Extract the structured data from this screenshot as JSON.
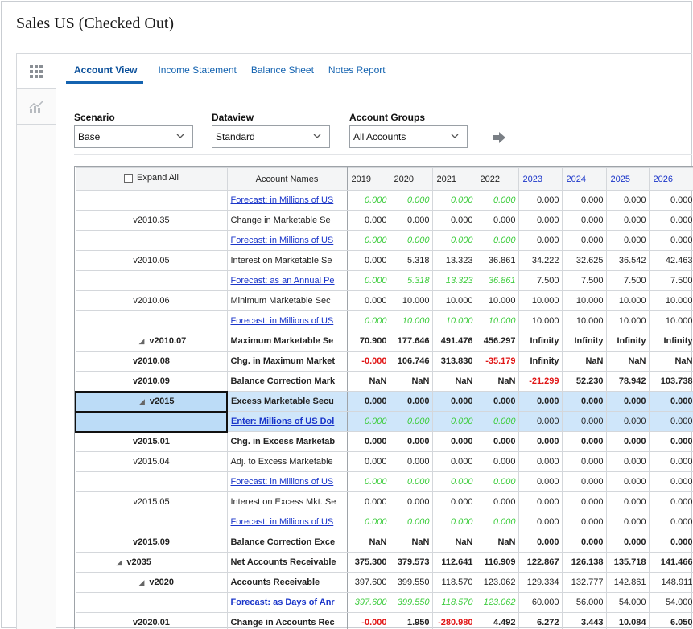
{
  "page_title": "Sales US (Checked Out)",
  "tabs": [
    {
      "label": "Account View",
      "active": true
    },
    {
      "label": "Income Statement",
      "active": false
    },
    {
      "label": "Balance Sheet",
      "active": false
    },
    {
      "label": "Notes Report",
      "active": false
    }
  ],
  "filters": {
    "scenario": {
      "label": "Scenario",
      "value": "Base"
    },
    "dataview": {
      "label": "Dataview",
      "value": "Standard"
    },
    "account_groups": {
      "label": "Account Groups",
      "value": "All Accounts"
    }
  },
  "grid": {
    "expand_all_label": "Expand All",
    "account_names_header": "Account Names",
    "years": [
      "2019",
      "2020",
      "2021",
      "2022",
      "2023",
      "2024",
      "2025",
      "2026"
    ],
    "future_years": [
      "2023",
      "2024",
      "2025",
      "2026"
    ],
    "rows": [
      {
        "code": "",
        "name": "Forecast: in Millions of US",
        "link": true,
        "bold": false,
        "values": [
          "0.000",
          "0.000",
          "0.000",
          "0.000",
          "0.000",
          "0.000",
          "0.000",
          "0.000"
        ],
        "green_count": 4
      },
      {
        "code": "v2010.35",
        "name": "Change in Marketable Se",
        "values": [
          "0.000",
          "0.000",
          "0.000",
          "0.000",
          "0.000",
          "0.000",
          "0.000",
          "0.000"
        ]
      },
      {
        "code": "",
        "name": "Forecast: in Millions of US",
        "link": true,
        "values": [
          "0.000",
          "0.000",
          "0.000",
          "0.000",
          "0.000",
          "0.000",
          "0.000",
          "0.000"
        ],
        "green_count": 4
      },
      {
        "code": "v2010.05",
        "name": "Interest on Marketable Se",
        "values": [
          "0.000",
          "5.318",
          "13.323",
          "36.861",
          "34.222",
          "32.625",
          "36.542",
          "42.463"
        ]
      },
      {
        "code": "",
        "name": "Forecast: as an Annual Pe",
        "link": true,
        "values": [
          "0.000",
          "5.318",
          "13.323",
          "36.861",
          "7.500",
          "7.500",
          "7.500",
          "7.500"
        ],
        "green_count": 4
      },
      {
        "code": "v2010.06",
        "name": "Minimum Marketable Sec",
        "values": [
          "0.000",
          "10.000",
          "10.000",
          "10.000",
          "10.000",
          "10.000",
          "10.000",
          "10.000"
        ]
      },
      {
        "code": "",
        "name": "Forecast: in Millions of US",
        "link": true,
        "values": [
          "0.000",
          "10.000",
          "10.000",
          "10.000",
          "10.000",
          "10.000",
          "10.000",
          "10.000"
        ],
        "green_count": 4
      },
      {
        "code": "v2010.07",
        "name": "Maximum Marketable Se",
        "bold": true,
        "expander": true,
        "values": [
          "70.900",
          "177.646",
          "491.476",
          "456.297",
          "Infinity",
          "Infinity",
          "Infinity",
          "Infinity"
        ]
      },
      {
        "code": "v2010.08",
        "name": "Chg. in Maximum Market",
        "bold": true,
        "values": [
          "-0.000",
          "106.746",
          "313.830",
          "-35.179",
          "Infinity",
          "NaN",
          "NaN",
          "NaN"
        ],
        "red": [
          0,
          3
        ]
      },
      {
        "code": "v2010.09",
        "name": "Balance Correction Mark",
        "bold": true,
        "values": [
          "NaN",
          "NaN",
          "NaN",
          "NaN",
          "-21.299",
          "52.230",
          "78.942",
          "103.738"
        ],
        "red": [
          4
        ]
      },
      {
        "code": "v2015",
        "name": "Excess Marketable Secu",
        "bold": true,
        "expander": true,
        "selected": true,
        "values": [
          "0.000",
          "0.000",
          "0.000",
          "0.000",
          "0.000",
          "0.000",
          "0.000",
          "0.000"
        ]
      },
      {
        "code": "",
        "name": "Enter: Millions of US Dol",
        "link": true,
        "bold": true,
        "selected": true,
        "values": [
          "0.000",
          "0.000",
          "0.000",
          "0.000",
          "0.000",
          "0.000",
          "0.000",
          "0.000"
        ],
        "green_count": 4
      },
      {
        "code": "v2015.01",
        "name": "Chg. in Excess Marketab",
        "bold": true,
        "values": [
          "0.000",
          "0.000",
          "0.000",
          "0.000",
          "0.000",
          "0.000",
          "0.000",
          "0.000"
        ]
      },
      {
        "code": "v2015.04",
        "name": "Adj. to Excess Marketable",
        "values": [
          "0.000",
          "0.000",
          "0.000",
          "0.000",
          "0.000",
          "0.000",
          "0.000",
          "0.000"
        ]
      },
      {
        "code": "",
        "name": "Forecast: in Millions of US",
        "link": true,
        "values": [
          "0.000",
          "0.000",
          "0.000",
          "0.000",
          "0.000",
          "0.000",
          "0.000",
          "0.000"
        ],
        "green_count": 4
      },
      {
        "code": "v2015.05",
        "name": "Interest on Excess Mkt. Se",
        "values": [
          "0.000",
          "0.000",
          "0.000",
          "0.000",
          "0.000",
          "0.000",
          "0.000",
          "0.000"
        ]
      },
      {
        "code": "",
        "name": "Forecast: in Millions of US",
        "link": true,
        "values": [
          "0.000",
          "0.000",
          "0.000",
          "0.000",
          "0.000",
          "0.000",
          "0.000",
          "0.000"
        ],
        "green_count": 4
      },
      {
        "code": "v2015.09",
        "name": "Balance Correction Exce",
        "bold": true,
        "values": [
          "NaN",
          "NaN",
          "NaN",
          "NaN",
          "0.000",
          "0.000",
          "0.000",
          "0.000"
        ]
      },
      {
        "code": "v2035",
        "name": "Net Accounts Receivable",
        "bold": true,
        "expander": true,
        "indent": "outer",
        "values": [
          "375.300",
          "379.573",
          "112.641",
          "116.909",
          "122.867",
          "126.138",
          "135.718",
          "141.466"
        ]
      },
      {
        "code": "v2020",
        "name": "Accounts Receivable",
        "bold": true,
        "expander": true,
        "values": [
          "397.600",
          "399.550",
          "118.570",
          "123.062",
          "129.334",
          "132.777",
          "142.861",
          "148.911"
        ],
        "plain_vals": true
      },
      {
        "code": "",
        "name": "Forecast: as Days of Anr",
        "link": true,
        "bold": true,
        "values": [
          "397.600",
          "399.550",
          "118.570",
          "123.062",
          "60.000",
          "56.000",
          "54.000",
          "54.000"
        ],
        "green_count": 4
      },
      {
        "code": "v2020.01",
        "name": "Change in Accounts Rec",
        "bold": true,
        "values": [
          "-0.000",
          "1.950",
          "-280.980",
          "4.492",
          "6.272",
          "3.443",
          "10.084",
          "6.050"
        ],
        "red": [
          0,
          2
        ]
      }
    ]
  }
}
